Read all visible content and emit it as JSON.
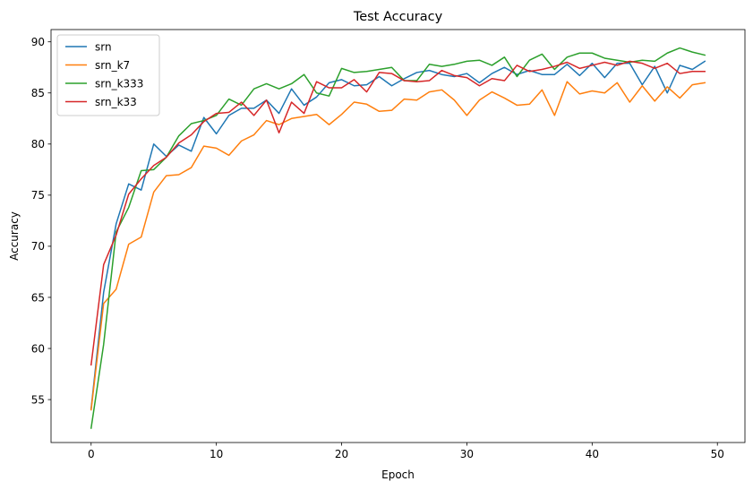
{
  "chart_data": {
    "type": "line",
    "title": "Test Accuracy",
    "xlabel": "Epoch",
    "ylabel": "Accuracy",
    "xlim": [
      -3.2,
      52.2
    ],
    "ylim": [
      50.8,
      91.2
    ],
    "xticks": [
      0,
      10,
      20,
      30,
      40,
      50
    ],
    "yticks": [
      55,
      60,
      65,
      70,
      75,
      80,
      85,
      90
    ],
    "grid": false,
    "legend_position": "top-left",
    "x": [
      0,
      1,
      2,
      3,
      4,
      5,
      6,
      7,
      8,
      9,
      10,
      11,
      12,
      13,
      14,
      15,
      16,
      17,
      18,
      19,
      20,
      21,
      22,
      23,
      24,
      25,
      26,
      27,
      28,
      29,
      30,
      31,
      32,
      33,
      34,
      35,
      36,
      37,
      38,
      39,
      40,
      41,
      42,
      43,
      44,
      45,
      46,
      47,
      48,
      49
    ],
    "series": [
      {
        "name": "srn",
        "color": "#1f77b4",
        "values": [
          54.1,
          65.5,
          72.2,
          76.1,
          75.5,
          80.0,
          78.8,
          79.9,
          79.3,
          82.6,
          81.0,
          82.8,
          83.5,
          83.5,
          84.3,
          83.0,
          85.4,
          83.8,
          84.6,
          86.0,
          86.3,
          85.7,
          85.8,
          86.6,
          85.7,
          86.4,
          87.0,
          87.2,
          86.8,
          86.6,
          86.9,
          86.0,
          86.9,
          87.5,
          86.8,
          87.2,
          86.8,
          86.8,
          87.8,
          86.7,
          87.9,
          86.5,
          87.9,
          87.9,
          85.8,
          87.6,
          85.0,
          87.7,
          87.3,
          88.1
        ]
      },
      {
        "name": "srn_k7",
        "color": "#ff7f0e",
        "values": [
          54.0,
          64.4,
          65.8,
          70.2,
          70.9,
          75.3,
          76.9,
          77.0,
          77.7,
          79.8,
          79.6,
          78.9,
          80.3,
          80.9,
          82.3,
          81.9,
          82.5,
          82.7,
          82.9,
          81.9,
          82.9,
          84.1,
          83.9,
          83.2,
          83.3,
          84.4,
          84.3,
          85.1,
          85.3,
          84.3,
          82.8,
          84.3,
          85.1,
          84.5,
          83.8,
          83.9,
          85.3,
          82.8,
          86.1,
          84.9,
          85.2,
          85.0,
          86.0,
          84.1,
          85.7,
          84.2,
          85.6,
          84.5,
          85.8,
          86.0
        ]
      },
      {
        "name": "srn_k333",
        "color": "#2ca02c",
        "values": [
          52.2,
          60.4,
          71.4,
          73.8,
          77.4,
          77.5,
          78.7,
          80.8,
          82.0,
          82.3,
          82.8,
          84.4,
          83.8,
          85.4,
          85.9,
          85.4,
          85.9,
          86.8,
          85.0,
          84.7,
          87.4,
          87.0,
          87.1,
          87.3,
          87.5,
          86.2,
          86.2,
          87.8,
          87.6,
          87.8,
          88.1,
          88.2,
          87.7,
          88.5,
          86.6,
          88.2,
          88.8,
          87.3,
          88.5,
          88.9,
          88.9,
          88.4,
          88.2,
          88.0,
          88.2,
          88.1,
          88.9,
          89.4,
          89.0,
          88.7
        ]
      },
      {
        "name": "srn_k33",
        "color": "#d62728",
        "values": [
          58.4,
          68.2,
          71.1,
          75.1,
          76.6,
          77.9,
          78.7,
          80.1,
          80.9,
          82.2,
          83.0,
          83.1,
          84.1,
          82.8,
          84.3,
          81.1,
          84.1,
          83.0,
          86.1,
          85.5,
          85.5,
          86.3,
          85.1,
          87.0,
          86.9,
          86.2,
          86.1,
          86.2,
          87.2,
          86.7,
          86.5,
          85.7,
          86.4,
          86.2,
          87.7,
          87.1,
          87.3,
          87.6,
          88.0,
          87.4,
          87.7,
          88.0,
          87.7,
          88.1,
          87.9,
          87.4,
          87.9,
          86.9,
          87.1,
          87.1
        ]
      }
    ]
  }
}
